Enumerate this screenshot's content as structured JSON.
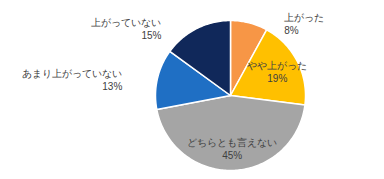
{
  "chart_data": {
    "type": "pie",
    "categories": [
      "上がった",
      "やや上がった",
      "どちらとも言えない",
      "あまり上がっていない",
      "上がっていない"
    ],
    "values": [
      8,
      19,
      45,
      13,
      15
    ],
    "value_labels": [
      "8%",
      "19%",
      "45%",
      "13%",
      "15%"
    ],
    "colors": [
      "#F79646",
      "#FFC000",
      "#A5A5A5",
      "#1F6FC4",
      "#10285A"
    ],
    "data_labels": true
  }
}
